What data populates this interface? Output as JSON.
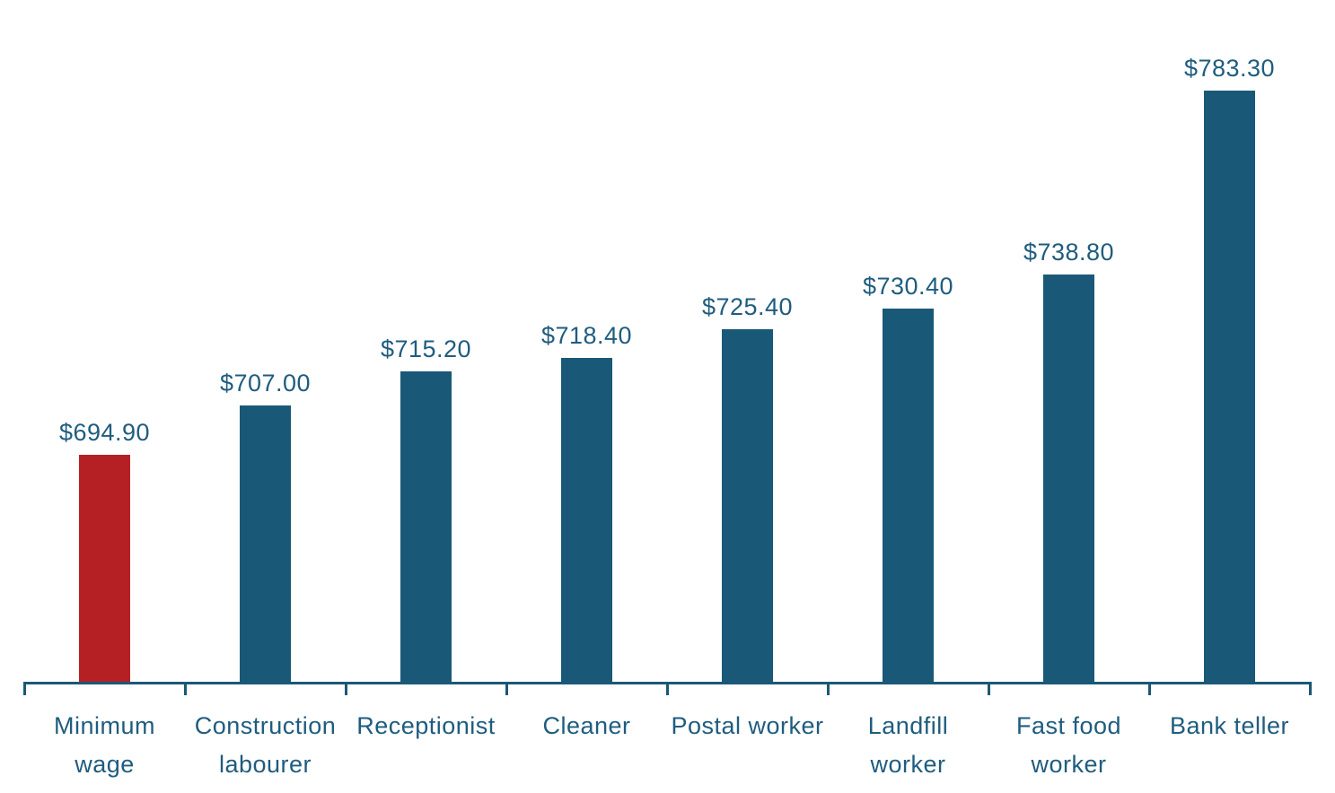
{
  "chart_data": {
    "type": "bar",
    "title": "",
    "xlabel": "",
    "ylabel": "",
    "grid": false,
    "legend": "none",
    "ylim": [
      640,
      790
    ],
    "categories": [
      "Minimum wage",
      "Construction labourer",
      "Receptionist",
      "Cleaner",
      "Postal worker",
      "Landfill worker",
      "Fast food worker",
      "Bank teller"
    ],
    "category_lines": [
      [
        "Minimum",
        "wage"
      ],
      [
        "Construction",
        "labourer"
      ],
      [
        "Receptionist"
      ],
      [
        "Cleaner"
      ],
      [
        "Postal worker"
      ],
      [
        "Landfill",
        "worker"
      ],
      [
        "Fast food",
        "worker"
      ],
      [
        "Bank teller"
      ]
    ],
    "values": [
      694.9,
      707.0,
      715.2,
      718.4,
      725.4,
      730.4,
      738.8,
      783.3
    ],
    "value_labels": [
      "$694.90",
      "$707.00",
      "$715.20",
      "$718.40",
      "$725.40",
      "$730.40",
      "$738.80",
      "$783.30"
    ],
    "highlight_index": 0,
    "colors": {
      "bar": "#1A5878",
      "highlight_bar": "#B52025",
      "label_text": "#1F5C7F",
      "axis": "#1B5876"
    }
  }
}
